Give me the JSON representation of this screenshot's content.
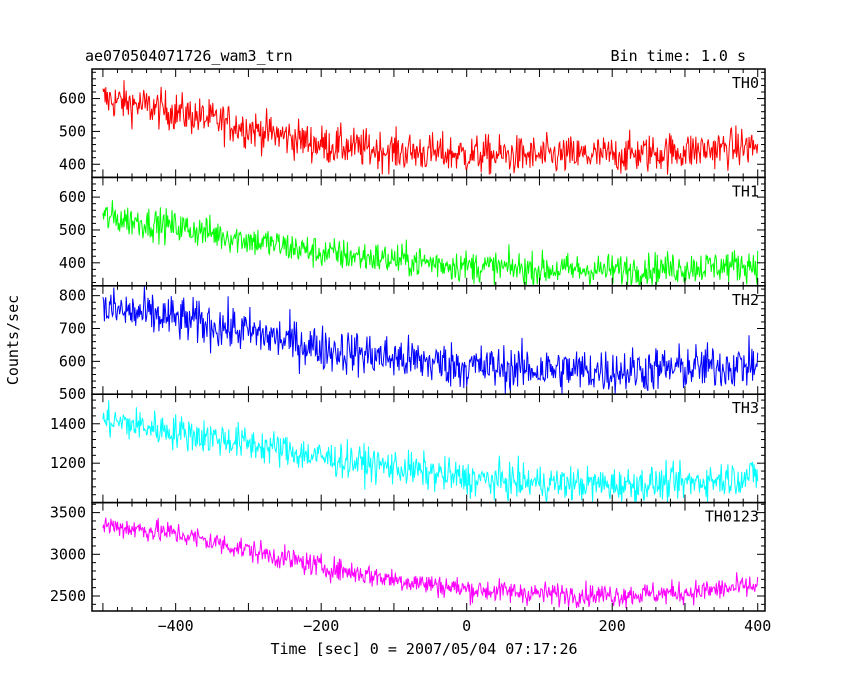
{
  "header": {
    "title": "ae070504071726_wam3_trn",
    "bin_time": "Bin time: 1.0 s"
  },
  "chart_data": {
    "type": "line",
    "xlabel": "Time [sec] 0 = 2007/05/04 07:17:26",
    "ylabel": "Counts/sec",
    "xlim": [
      -515,
      410
    ],
    "xticks": [
      -400,
      -200,
      0,
      200,
      400
    ],
    "xrange_data": [
      -500,
      400
    ],
    "panels": [
      {
        "name": "TH0",
        "color": "#ff0000",
        "ylim": [
          360,
          690
        ],
        "yticks": [
          400,
          500,
          600
        ],
        "trend": [
          [
            -500,
            600
          ],
          [
            -400,
            560
          ],
          [
            -300,
            510
          ],
          [
            -200,
            460
          ],
          [
            -100,
            440
          ],
          [
            0,
            430
          ],
          [
            100,
            425
          ],
          [
            200,
            428
          ],
          [
            300,
            440
          ],
          [
            400,
            455
          ]
        ],
        "noise": 30
      },
      {
        "name": "TH1",
        "color": "#00ff00",
        "ylim": [
          330,
          660
        ],
        "yticks": [
          400,
          500,
          600
        ],
        "trend": [
          [
            -500,
            540
          ],
          [
            -400,
            510
          ],
          [
            -300,
            470
          ],
          [
            -200,
            430
          ],
          [
            -100,
            410
          ],
          [
            0,
            390
          ],
          [
            100,
            380
          ],
          [
            200,
            378
          ],
          [
            300,
            385
          ],
          [
            400,
            395
          ]
        ],
        "noise": 25
      },
      {
        "name": "TH2",
        "color": "#0000ff",
        "ylim": [
          500,
          830
        ],
        "yticks": [
          500,
          600,
          700,
          800
        ],
        "trend": [
          [
            -500,
            760
          ],
          [
            -400,
            730
          ],
          [
            -300,
            690
          ],
          [
            -200,
            640
          ],
          [
            -100,
            610
          ],
          [
            0,
            585
          ],
          [
            100,
            575
          ],
          [
            200,
            570
          ],
          [
            300,
            580
          ],
          [
            400,
            590
          ]
        ],
        "noise": 35
      },
      {
        "name": "TH3",
        "color": "#00ffff",
        "ylim": [
          1000,
          1550
        ],
        "yticks": [
          1200,
          1400
        ],
        "trend": [
          [
            -500,
            1420
          ],
          [
            -400,
            1360
          ],
          [
            -300,
            1300
          ],
          [
            -200,
            1230
          ],
          [
            -100,
            1180
          ],
          [
            0,
            1120
          ],
          [
            100,
            1100
          ],
          [
            200,
            1090
          ],
          [
            300,
            1100
          ],
          [
            400,
            1140
          ]
        ],
        "noise": 45
      },
      {
        "name": "TH0123",
        "color": "#ff00ff",
        "ylim": [
          2320,
          3620
        ],
        "yticks": [
          2500,
          3000,
          3500
        ],
        "trend": [
          [
            -500,
            3350
          ],
          [
            -400,
            3250
          ],
          [
            -300,
            3050
          ],
          [
            -200,
            2850
          ],
          [
            -100,
            2700
          ],
          [
            0,
            2580
          ],
          [
            100,
            2530
          ],
          [
            200,
            2510
          ],
          [
            300,
            2540
          ],
          [
            400,
            2620
          ]
        ],
        "noise": 70
      }
    ]
  }
}
